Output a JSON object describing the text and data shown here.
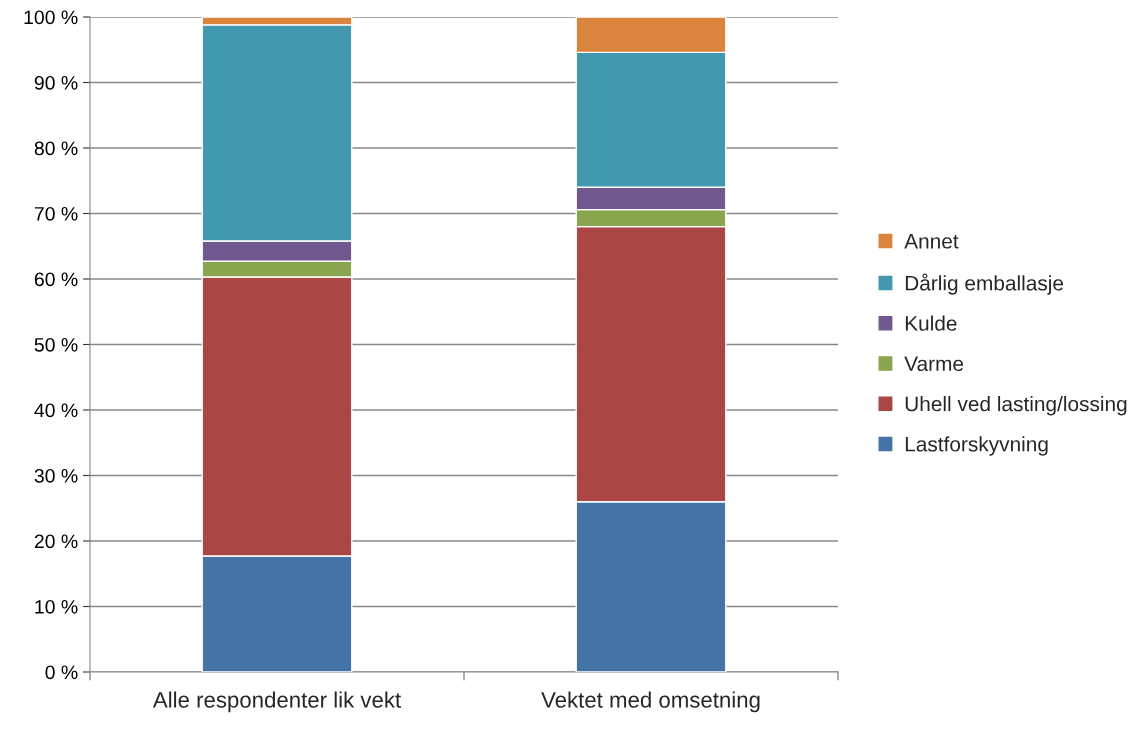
{
  "chart_data": {
    "type": "bar",
    "stacked": true,
    "categories": [
      "Alle respondenter lik vekt",
      "Vektet med omsetning"
    ],
    "series": [
      {
        "name": "Lastforskyvning",
        "color": "#4572a7",
        "values": [
          17.7,
          26
        ]
      },
      {
        "name": "Uhell ved lasting/lossing",
        "color": "#aa4643",
        "values": [
          42.6,
          42
        ]
      },
      {
        "name": "Varme",
        "color": "#89a54e",
        "values": [
          2.4,
          2.6
        ]
      },
      {
        "name": "Kulde",
        "color": "#71588f",
        "values": [
          3.1,
          3.4
        ]
      },
      {
        "name": "Dårlig emballasje",
        "color": "#4198af",
        "values": [
          33,
          20.6
        ]
      },
      {
        "name": "Annet",
        "color": "#db843d",
        "values": [
          1.2,
          5.4
        ]
      }
    ],
    "ylim": [
      0,
      100
    ],
    "yticks": [
      {
        "value": 0,
        "label": "0 %"
      },
      {
        "value": 10,
        "label": "10 %"
      },
      {
        "value": 20,
        "label": "20 %"
      },
      {
        "value": 30,
        "label": "30 %"
      },
      {
        "value": 40,
        "label": "40 %"
      },
      {
        "value": 50,
        "label": "50 %"
      },
      {
        "value": 60,
        "label": "60 %"
      },
      {
        "value": 70,
        "label": "70 %"
      },
      {
        "value": 80,
        "label": "80 %"
      },
      {
        "value": 90,
        "label": "90 %"
      },
      {
        "value": 100,
        "label": "100 %"
      }
    ],
    "grid": "y",
    "legend": "right"
  }
}
